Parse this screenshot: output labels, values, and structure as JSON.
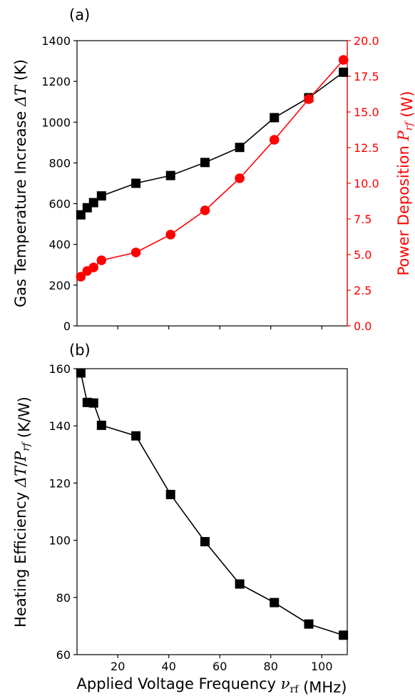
{
  "chart_data": [
    {
      "type": "line",
      "panel_label": "(a)",
      "ylabel_left": "Gas Temperature Increase ΔT (K)",
      "ylabel_right": "Power Deposition P_rf (W)",
      "ylim_left": [
        0,
        1400
      ],
      "ylim_right": [
        0.0,
        20.0
      ],
      "yticks_left": [
        "0",
        "200",
        "400",
        "600",
        "800",
        "1000",
        "1200",
        "1400"
      ],
      "yticks_right": [
        "0.0",
        "2.5",
        "5.0",
        "7.5",
        "10.0",
        "12.5",
        "15.0",
        "17.5",
        "20.0"
      ],
      "xlim": [
        4,
        110
      ],
      "grid": false,
      "series": [
        {
          "axis": "left",
          "marker": "square",
          "color": "#000000",
          "x": [
            5.5,
            8,
            10.5,
            13.6,
            27.1,
            40.7,
            54.2,
            67.8,
            81.4,
            94.9,
            108.5
          ],
          "y": [
            545,
            580,
            605,
            638,
            700,
            738,
            802,
            876,
            1022,
            1120,
            1245
          ]
        },
        {
          "axis": "right",
          "marker": "circle",
          "color": "#ff0000",
          "x": [
            5.5,
            8,
            10.5,
            13.6,
            27.1,
            40.7,
            54.2,
            67.8,
            81.4,
            94.9,
            108.5
          ],
          "y": [
            3.45,
            3.85,
            4.1,
            4.6,
            5.15,
            6.4,
            8.1,
            10.35,
            13.05,
            15.9,
            18.65
          ]
        }
      ]
    },
    {
      "type": "line",
      "panel_label": "(b)",
      "ylabel": "Heating Efficiency ΔT/P_rf (K/W)",
      "xlabel": "Applied Voltage Frequency ν_rf (MHz)",
      "ylim": [
        60,
        160
      ],
      "yticks": [
        "60",
        "80",
        "100",
        "120",
        "140",
        "160"
      ],
      "xlim": [
        4,
        110
      ],
      "xticks": [
        "20",
        "40",
        "60",
        "80",
        "100"
      ],
      "grid": false,
      "series": [
        {
          "marker": "square",
          "color": "#000000",
          "x": [
            5.5,
            8,
            10.5,
            13.6,
            27.1,
            40.7,
            54.2,
            67.8,
            81.4,
            94.9,
            108.5
          ],
          "y": [
            158.5,
            148.2,
            148,
            140.2,
            136.5,
            116,
            99.5,
            84.7,
            78.2,
            70.7,
            66.8
          ]
        }
      ]
    }
  ]
}
